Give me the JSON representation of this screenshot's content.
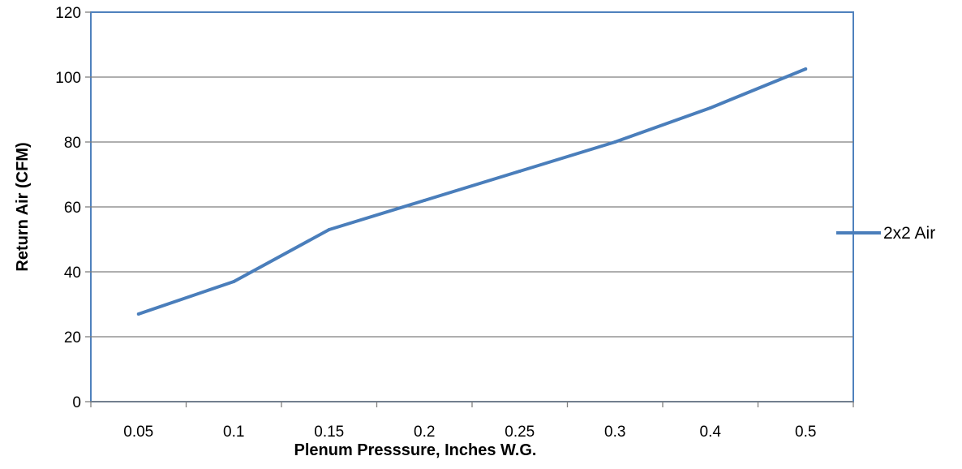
{
  "chart_data": {
    "type": "line",
    "categories": [
      "0.05",
      "0.1",
      "0.15",
      "0.2",
      "0.25",
      "0.3",
      "0.4",
      "0.5"
    ],
    "series": [
      {
        "name": "2x2 Air",
        "values": [
          27,
          37,
          53,
          62,
          71,
          80,
          90.5,
          102.5
        ]
      }
    ],
    "xlabel": "Plenum Presssure, Inches W.G.",
    "ylabel": "Return Air (CFM)",
    "ylim": [
      0,
      120
    ],
    "yticks": [
      "0",
      "20",
      "40",
      "60",
      "80",
      "100",
      "120"
    ],
    "grid": "horizontal",
    "legend": "right",
    "colors": {
      "series": "#4a7ebb",
      "grid": "#7f7f7f",
      "plot_border": "#4f81bd",
      "axis": "#7f7f7f"
    }
  }
}
